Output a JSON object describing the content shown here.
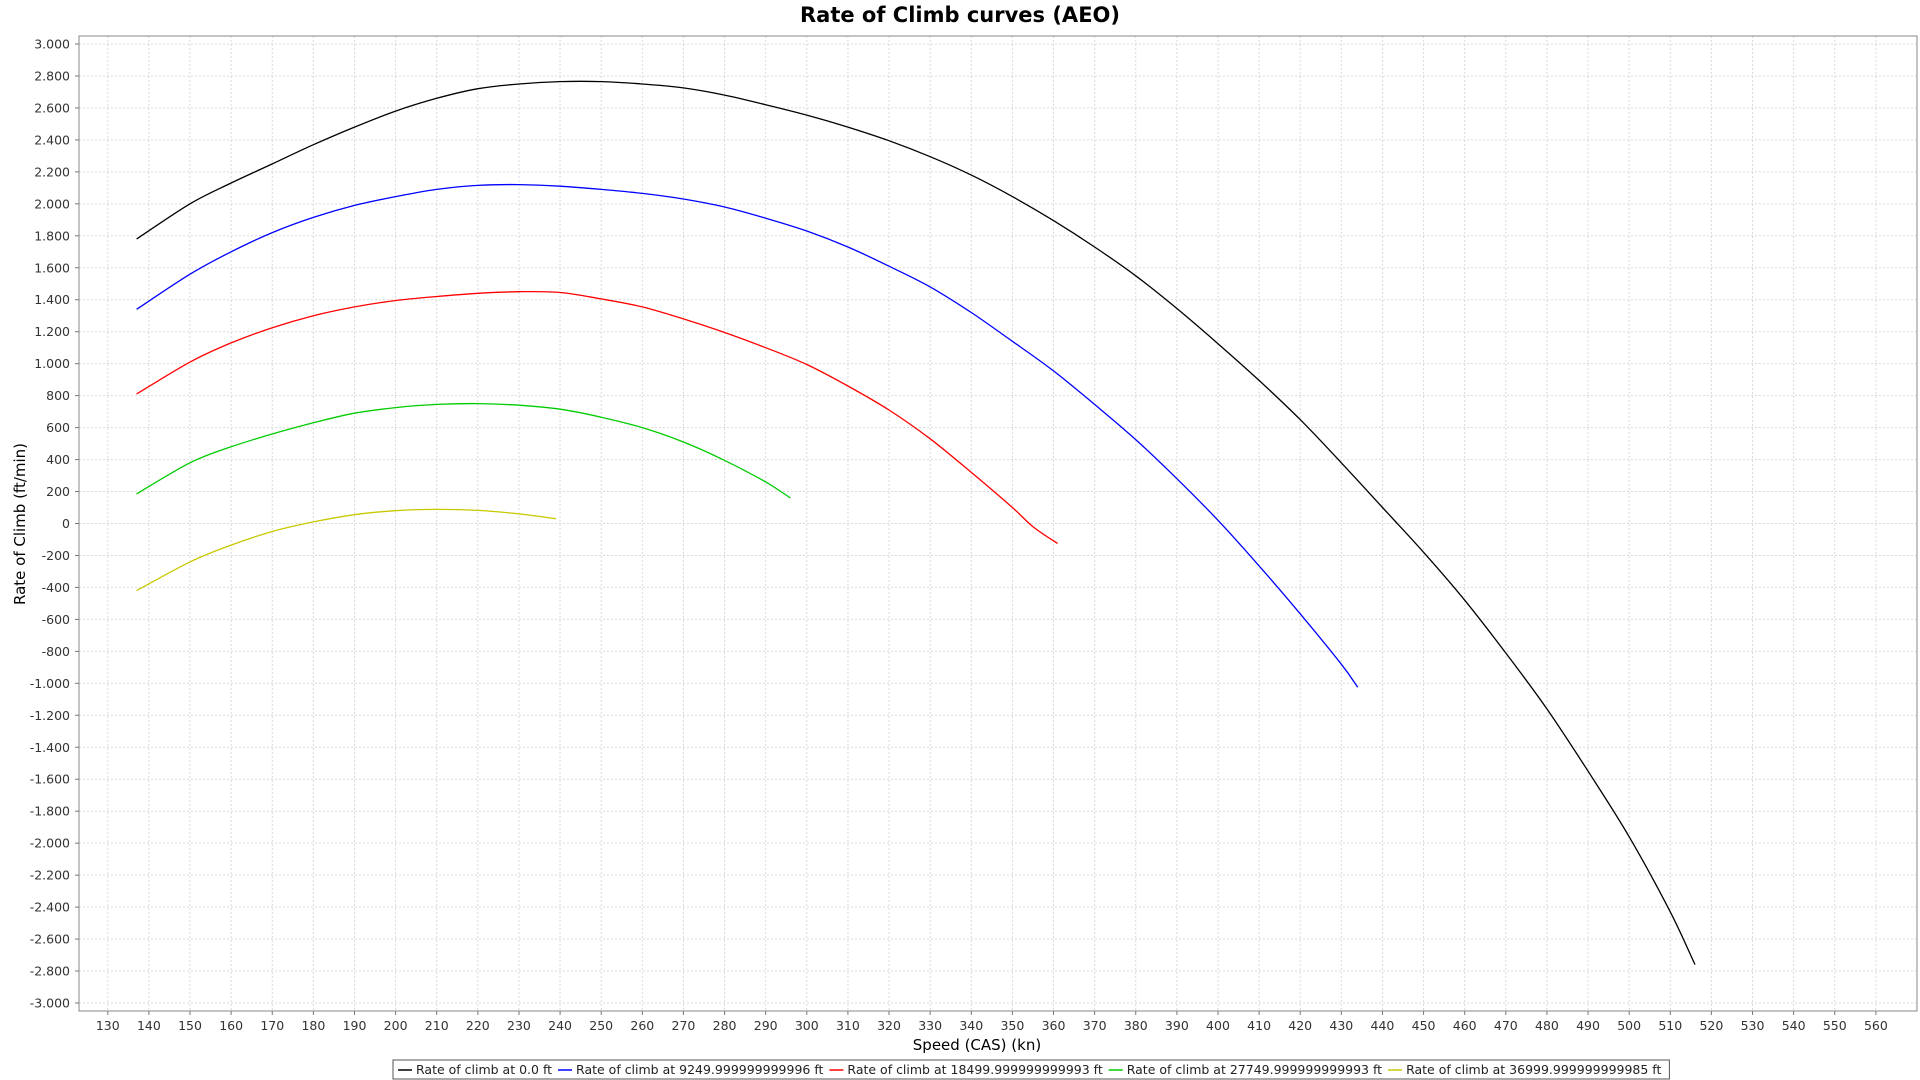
{
  "chart_data": {
    "type": "line",
    "title": "Rate of Climb curves (AEO)",
    "xlabel": "Speed (CAS) (kn)",
    "ylabel": "Rate of Climb (ft/min)",
    "xlim": [
      123,
      570
    ],
    "ylim": [
      -3050,
      3050
    ],
    "x_ticks": [
      130,
      140,
      150,
      160,
      170,
      180,
      190,
      200,
      210,
      220,
      230,
      240,
      250,
      260,
      270,
      280,
      290,
      300,
      310,
      320,
      330,
      340,
      350,
      360,
      370,
      380,
      390,
      400,
      410,
      420,
      430,
      440,
      450,
      460,
      470,
      480,
      490,
      500,
      510,
      520,
      530,
      540,
      550,
      560
    ],
    "y_ticks": [
      3000,
      2800,
      2600,
      2400,
      2200,
      2000,
      1800,
      1600,
      1400,
      1200,
      1000,
      800,
      600,
      400,
      200,
      0,
      -200,
      -400,
      -600,
      -800,
      -1000,
      -1200,
      -1400,
      -1600,
      -1800,
      -2000,
      -2200,
      -2400,
      -2600,
      -2800,
      -3000
    ],
    "y_tick_labels": [
      "3.000",
      "2.800",
      "2.600",
      "2.400",
      "2.200",
      "2.000",
      "1.800",
      "1.600",
      "1.400",
      "1.200",
      "1.000",
      "800",
      "600",
      "400",
      "200",
      "0",
      "-200",
      "-400",
      "-600",
      "-800",
      "-1.000",
      "-1.200",
      "-1.400",
      "-1.600",
      "-1.800",
      "-2.000",
      "-2.200",
      "-2.400",
      "-2.600",
      "-2.800",
      "-3.000"
    ],
    "grid": true,
    "legend_position": "bottom",
    "series": [
      {
        "name": "Rate of climb at 0.0 ft",
        "color": "#000000",
        "x": [
          137,
          150,
          160,
          170,
          180,
          190,
          200,
          210,
          220,
          230,
          240,
          250,
          260,
          270,
          280,
          290,
          300,
          310,
          320,
          330,
          340,
          350,
          360,
          370,
          380,
          390,
          400,
          410,
          420,
          430,
          440,
          450,
          460,
          470,
          480,
          490,
          500,
          510,
          516
        ],
        "y": [
          1780,
          2000,
          2130,
          2250,
          2370,
          2480,
          2580,
          2660,
          2720,
          2750,
          2765,
          2765,
          2750,
          2725,
          2680,
          2620,
          2555,
          2480,
          2395,
          2295,
          2180,
          2045,
          1895,
          1730,
          1550,
          1345,
          1125,
          895,
          650,
          380,
          100,
          -180,
          -480,
          -810,
          -1160,
          -1550,
          -1960,
          -2430,
          -2760
        ]
      },
      {
        "name": "Rate of climb at 9249.999999999996 ft",
        "color": "#0000ff",
        "x": [
          137,
          150,
          160,
          170,
          180,
          190,
          200,
          210,
          220,
          230,
          240,
          250,
          260,
          270,
          280,
          290,
          300,
          310,
          320,
          330,
          340,
          350,
          360,
          370,
          380,
          390,
          400,
          410,
          420,
          430,
          434
        ],
        "y": [
          1340,
          1560,
          1700,
          1820,
          1915,
          1990,
          2045,
          2090,
          2115,
          2120,
          2110,
          2090,
          2065,
          2030,
          1980,
          1910,
          1830,
          1730,
          1610,
          1480,
          1320,
          1140,
          955,
          745,
          525,
          280,
          20,
          -265,
          -565,
          -880,
          -1025
        ]
      },
      {
        "name": "Rate of climb at 18499.999999999993 ft",
        "color": "#ff0000",
        "x": [
          137,
          150,
          160,
          170,
          180,
          190,
          200,
          210,
          220,
          230,
          240,
          250,
          260,
          270,
          280,
          290,
          300,
          310,
          320,
          330,
          340,
          350,
          355,
          361
        ],
        "y": [
          810,
          1010,
          1130,
          1225,
          1300,
          1355,
          1395,
          1420,
          1440,
          1450,
          1445,
          1405,
          1355,
          1280,
          1195,
          1100,
          995,
          860,
          710,
          530,
          320,
          100,
          -20,
          -125
        ]
      },
      {
        "name": "Rate of climb at 27749.999999999993 ft",
        "color": "#00cc00",
        "x": [
          137,
          150,
          160,
          170,
          180,
          190,
          200,
          210,
          220,
          230,
          240,
          250,
          260,
          270,
          280,
          290,
          296
        ],
        "y": [
          185,
          380,
          480,
          560,
          630,
          690,
          725,
          745,
          750,
          740,
          715,
          665,
          600,
          510,
          395,
          260,
          160
        ]
      },
      {
        "name": "Rate of climb at 36999.999999999985 ft",
        "color": "#c8c800",
        "x": [
          137,
          150,
          160,
          170,
          180,
          190,
          200,
          210,
          220,
          230,
          239
        ],
        "y": [
          -420,
          -240,
          -135,
          -50,
          10,
          55,
          80,
          88,
          82,
          60,
          30
        ]
      }
    ]
  }
}
